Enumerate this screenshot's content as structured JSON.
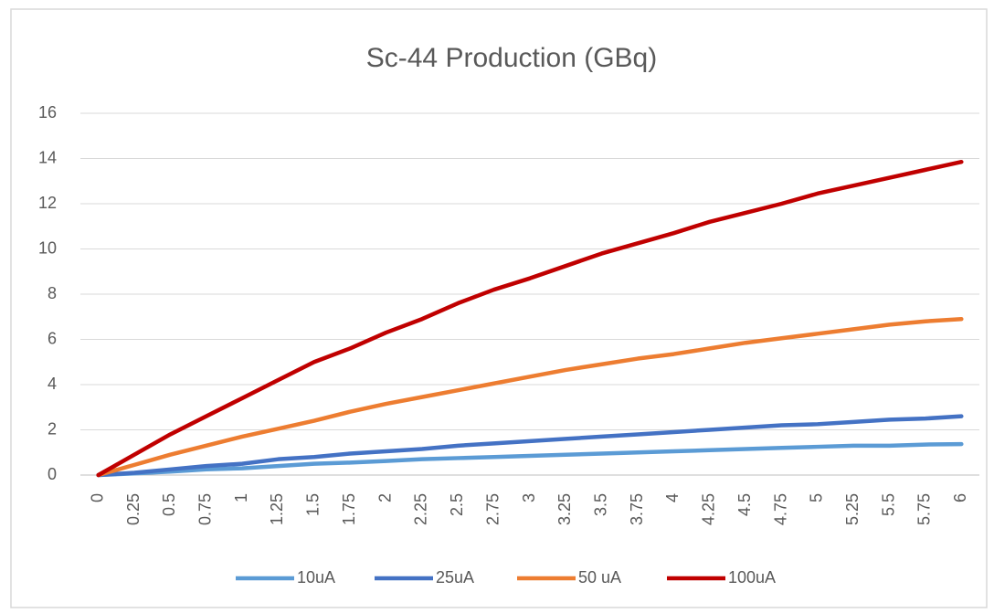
{
  "chart_data": {
    "type": "line",
    "title": "Sc-44 Production (GBq)",
    "categories": [
      "0",
      "0.25",
      "0.5",
      "0.75",
      "1",
      "1.25",
      "1.5",
      "1.75",
      "2",
      "2.25",
      "2.5",
      "2.75",
      "3",
      "3.25",
      "3.5",
      "3.75",
      "4",
      "4.25",
      "4.5",
      "4.75",
      "5",
      "5.25",
      "5.5",
      "5.75",
      "6"
    ],
    "series": [
      {
        "name": "10uA",
        "color": "#5b9bd5",
        "values": [
          0,
          0.07,
          0.15,
          0.25,
          0.3,
          0.4,
          0.5,
          0.55,
          0.62,
          0.7,
          0.75,
          0.8,
          0.85,
          0.9,
          0.95,
          1.0,
          1.05,
          1.1,
          1.15,
          1.2,
          1.25,
          1.3,
          1.3,
          1.35,
          1.37
        ]
      },
      {
        "name": "25uA",
        "color": "#4472c4",
        "values": [
          0,
          0.1,
          0.25,
          0.4,
          0.5,
          0.7,
          0.8,
          0.95,
          1.05,
          1.15,
          1.3,
          1.4,
          1.5,
          1.6,
          1.7,
          1.8,
          1.9,
          2.0,
          2.1,
          2.2,
          2.25,
          2.35,
          2.45,
          2.5,
          2.6
        ]
      },
      {
        "name": "50 uA",
        "color": "#ed7d31",
        "values": [
          0,
          0.45,
          0.9,
          1.3,
          1.7,
          2.05,
          2.4,
          2.8,
          3.15,
          3.45,
          3.75,
          4.05,
          4.35,
          4.65,
          4.9,
          5.15,
          5.35,
          5.6,
          5.85,
          6.05,
          6.25,
          6.45,
          6.65,
          6.8,
          6.9
        ]
      },
      {
        "name": "100uA",
        "color": "#c00000",
        "values": [
          0,
          0.9,
          1.8,
          2.6,
          3.4,
          4.2,
          5.0,
          5.6,
          6.3,
          6.9,
          7.6,
          8.2,
          8.7,
          9.25,
          9.8,
          10.25,
          10.7,
          11.2,
          11.6,
          12.0,
          12.45,
          12.8,
          13.15,
          13.5,
          13.85
        ]
      }
    ],
    "ylim": [
      0,
      16
    ],
    "yticks": [
      0,
      2,
      4,
      6,
      8,
      10,
      12,
      14,
      16
    ],
    "grid": true,
    "legend": "bottom"
  }
}
